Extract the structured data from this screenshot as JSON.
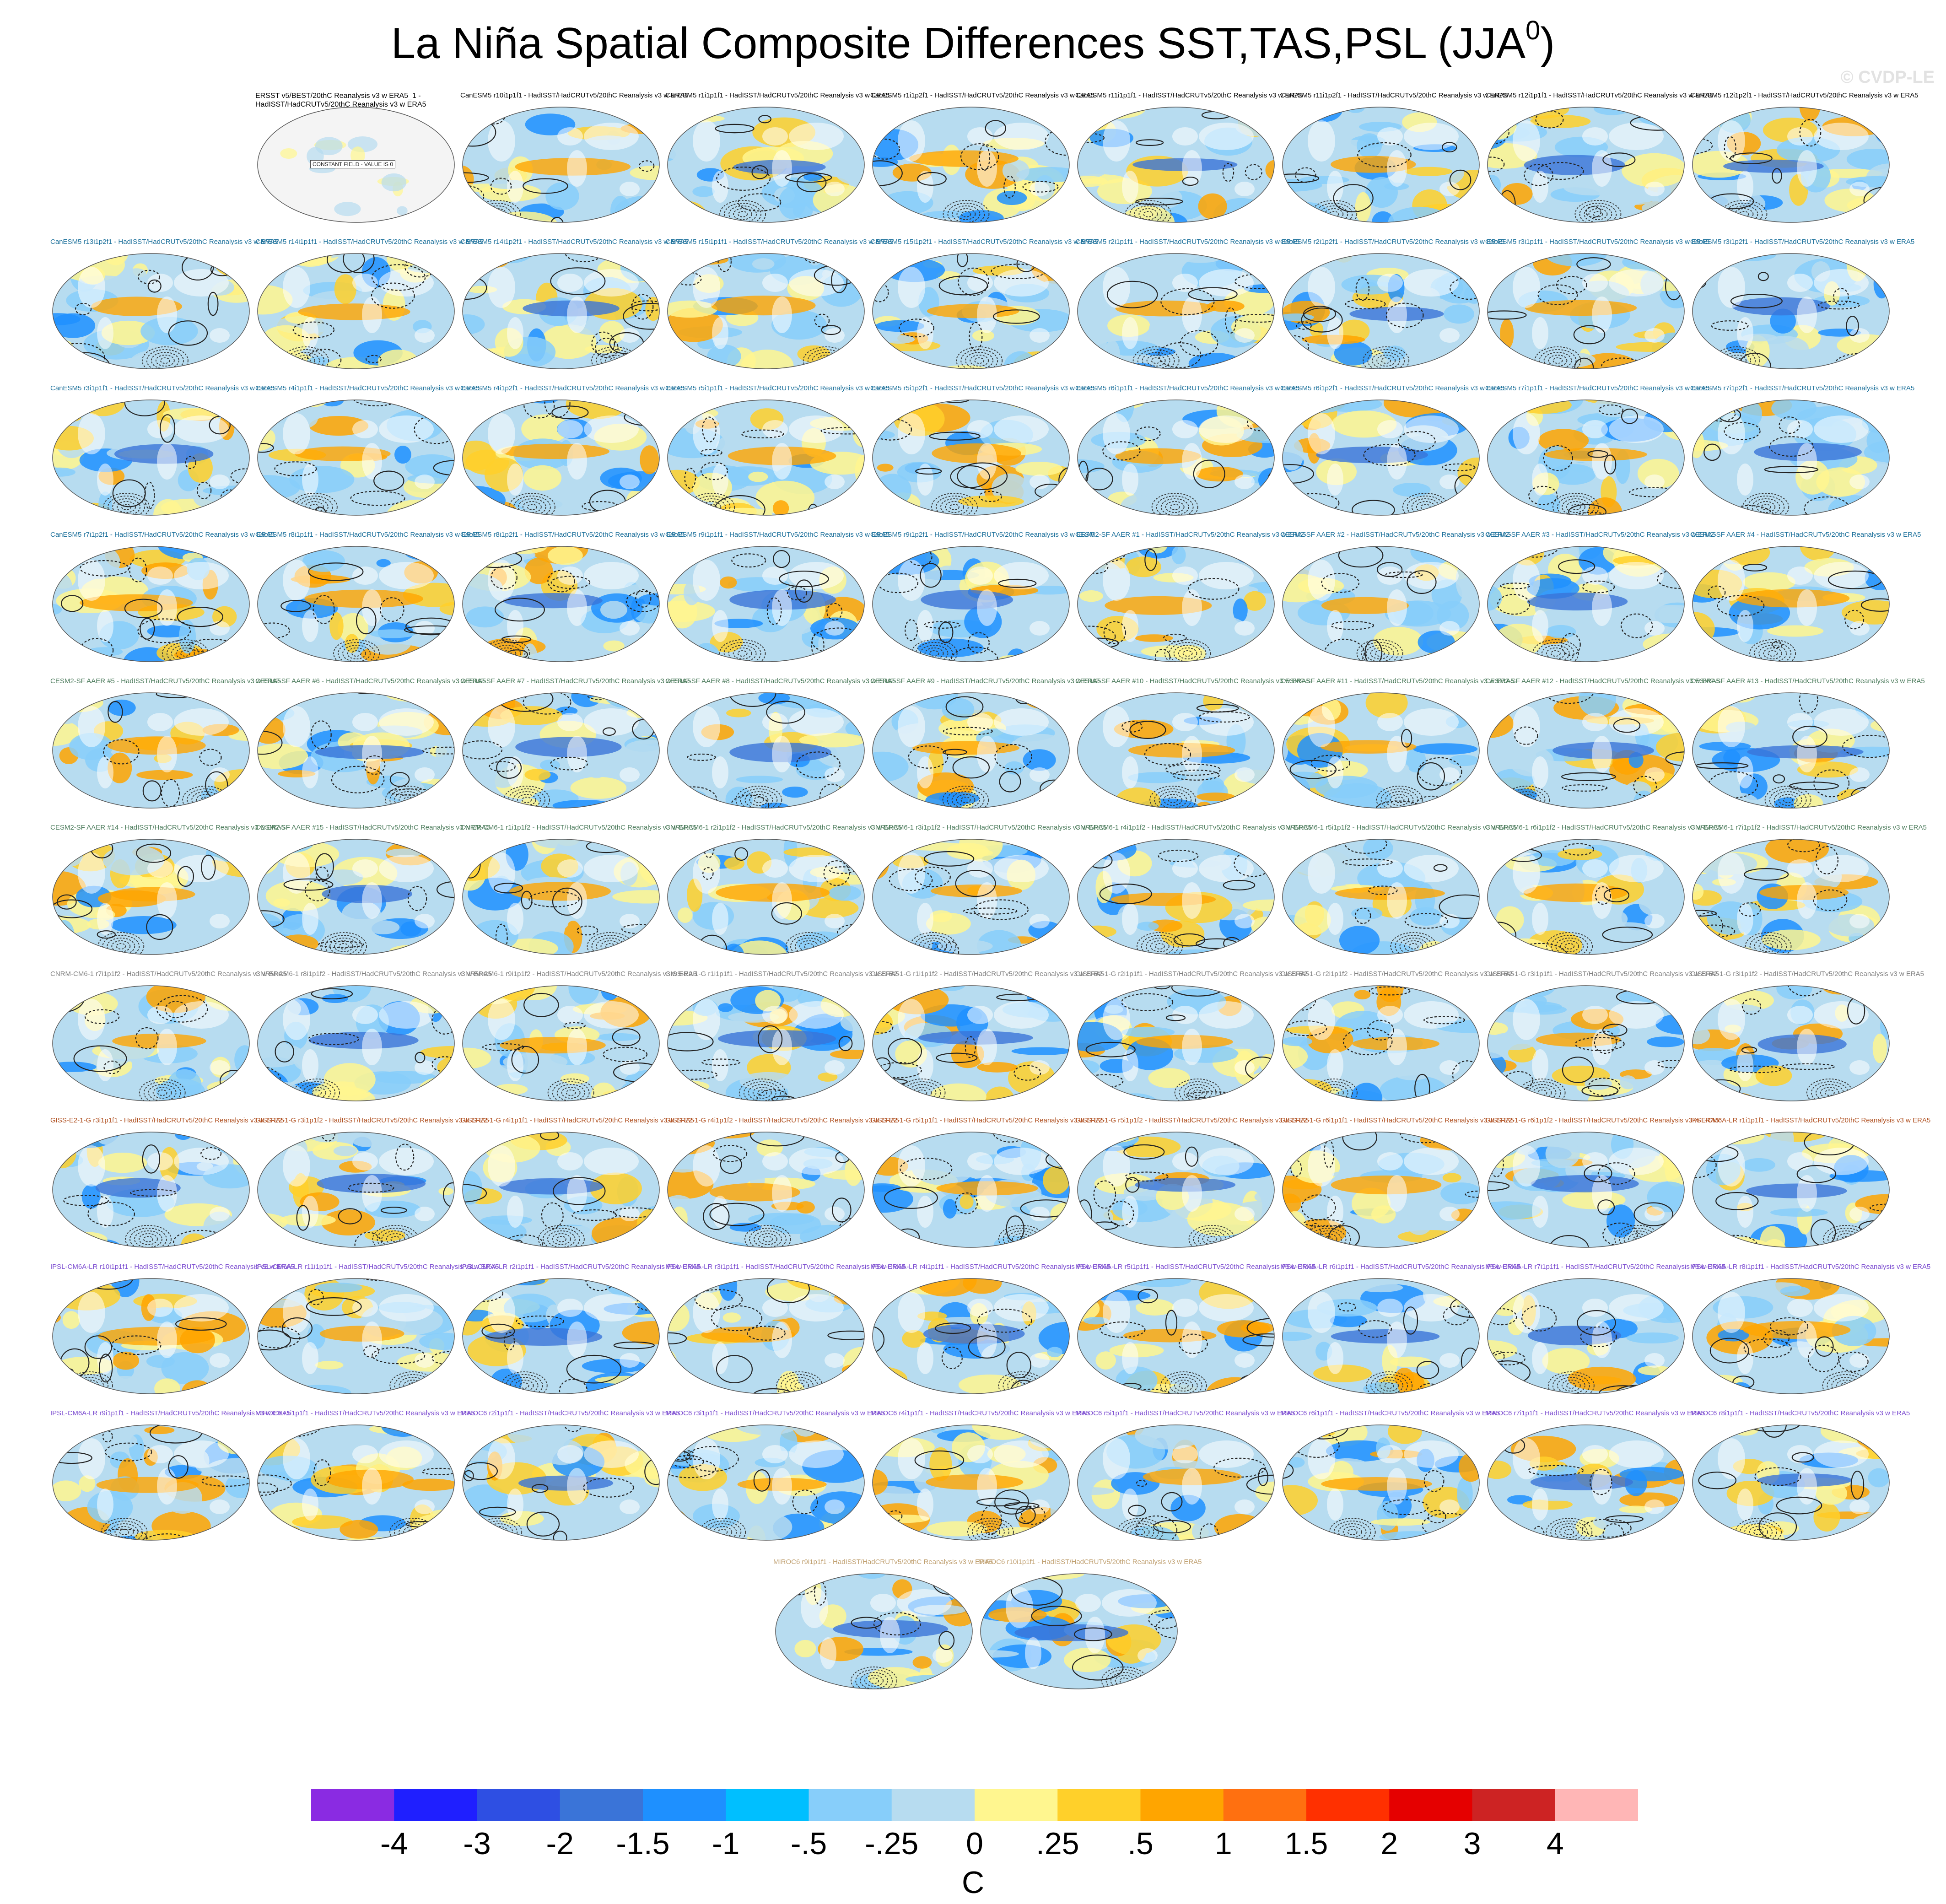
{
  "title": {
    "main": "La Niña Spatial Composite Differences SST,TAS,PSL (JJA",
    "superscript": "0",
    "close": ")"
  },
  "watermark": "© CVDP-LE",
  "units": "C",
  "colorbar": {
    "labels": [
      "-4",
      "-3",
      "-2",
      "-1.5",
      "-1",
      "-.5",
      "-.25",
      "0",
      ".25",
      ".5",
      "1",
      "1.5",
      "2",
      "3",
      "4"
    ],
    "colors": [
      "#8a2be2",
      "#1f1fff",
      "#2e4fe3",
      "#3a74d8",
      "#1e90ff",
      "#00bfff",
      "#87cefa",
      "#b7dcf0",
      "#fff68f",
      "#ffd02a",
      "#ffa500",
      "#ff7010",
      "#ff3000",
      "#e50000",
      "#cd2323",
      "#ffb6b6"
    ]
  },
  "rows": [
    {
      "color": "#000000",
      "labels": [
        "ERSST v5/BEST/20thC Reanalysis v3 w ERA5_1 - HadISST/HadCRUTv5/20thC Reanalysis v3 w ERA5",
        "CanESM5 r10i1p1f1 - HadISST/HadCRUTv5/20thC Reanalysis v3 w ERA5",
        "CanESM5 r1i1p1f1 - HadISST/HadCRUTv5/20thC Reanalysis v3 w ERA5",
        "CanESM5 r1i1p2f1 - HadISST/HadCRUTv5/20thC Reanalysis v3 w ERA5",
        "CanESM5 r11i1p1f1 - HadISST/HadCRUTv5/20thC Reanalysis v3 w ERA5",
        "CanESM5 r11i1p2f1 - HadISST/HadCRUTv5/20thC Reanalysis v3 w ERA5",
        "CanESM5 r12i1p1f1 - HadISST/HadCRUTv5/20thC Reanalysis v3 w ERA5",
        "CanESM5 r12i1p2f1 - HadISST/HadCRUTv5/20thC Reanalysis v3 w ERA5"
      ]
    },
    {
      "color": "#1a6f9a",
      "labels": [
        "CanESM5 r13i1p2f1 - HadISST/HadCRUTv5/20thC Reanalysis v3 w ERA5",
        "CanESM5 r14i1p1f1 - HadISST/HadCRUTv5/20thC Reanalysis v3 w ERA5",
        "CanESM5 r14i1p2f1 - HadISST/HadCRUTv5/20thC Reanalysis v3 w ERA5",
        "CanESM5 r15i1p1f1 - HadISST/HadCRUTv5/20thC Reanalysis v3 w ERA5",
        "CanESM5 r15i1p2f1 - HadISST/HadCRUTv5/20thC Reanalysis v3 w ERA5",
        "CanESM5 r2i1p1f1 - HadISST/HadCRUTv5/20thC Reanalysis v3 w ERA5",
        "CanESM5 r2i1p2f1 - HadISST/HadCRUTv5/20thC Reanalysis v3 w ERA5",
        "CanESM5 r3i1p1f1 - HadISST/HadCRUTv5/20thC Reanalysis v3 w ERA5",
        "CanESM5 r3i1p2f1 - HadISST/HadCRUTv5/20thC Reanalysis v3 w ERA5"
      ]
    },
    {
      "color": "#1a6f9a",
      "labels": [
        "CanESM5 r3i1p1f1 - HadISST/HadCRUTv5/20thC Reanalysis v3 w ERA5",
        "CanESM5 r4i1p1f1 - HadISST/HadCRUTv5/20thC Reanalysis v3 w ERA5",
        "CanESM5 r4i1p2f1 - HadISST/HadCRUTv5/20thC Reanalysis v3 w ERA5",
        "CanESM5 r5i1p1f1 - HadISST/HadCRUTv5/20thC Reanalysis v3 w ERA5",
        "CanESM5 r5i1p2f1 - HadISST/HadCRUTv5/20thC Reanalysis v3 w ERA5",
        "CanESM5 r6i1p1f1 - HadISST/HadCRUTv5/20thC Reanalysis v3 w ERA5",
        "CanESM5 r6i1p2f1 - HadISST/HadCRUTv5/20thC Reanalysis v3 w ERA5",
        "CanESM5 r7i1p1f1 - HadISST/HadCRUTv5/20thC Reanalysis v3 w ERA5",
        "CanESM5 r7i1p2f1 - HadISST/HadCRUTv5/20thC Reanalysis v3 w ERA5"
      ]
    },
    {
      "color": "#1a6f9a",
      "labels": [
        "CanESM5 r7i1p2f1 - HadISST/HadCRUTv5/20thC Reanalysis v3 w ERA5",
        "CanESM5 r8i1p1f1 - HadISST/HadCRUTv5/20thC Reanalysis v3 w ERA5",
        "CanESM5 r8i1p2f1 - HadISST/HadCRUTv5/20thC Reanalysis v3 w ERA5",
        "CanESM5 r9i1p1f1 - HadISST/HadCRUTv5/20thC Reanalysis v3 w ERA5",
        "CanESM5 r9i1p2f1 - HadISST/HadCRUTv5/20thC Reanalysis v3 w ERA5",
        "CESM2-SF AAER #1 - HadISST/HadCRUTv5/20thC Reanalysis v3 w ERA5",
        "CESM2-SF AAER #2 - HadISST/HadCRUTv5/20thC Reanalysis v3 w ERA5",
        "CESM2-SF AAER #3 - HadISST/HadCRUTv5/20thC Reanalysis v3 w ERA5",
        "CESM2-SF AAER #4 - HadISST/HadCRUTv5/20thC Reanalysis v3 w ERA5"
      ]
    },
    {
      "color": "#4a7a5a",
      "labels": [
        "CESM2-SF AAER #5 - HadISST/HadCRUTv5/20thC Reanalysis v3 w ERA5",
        "CESM2-SF AAER #6 - HadISST/HadCRUTv5/20thC Reanalysis v3 w ERA5",
        "CESM2-SF AAER #7 - HadISST/HadCRUTv5/20thC Reanalysis v3 w ERA5",
        "CESM2-SF AAER #8 - HadISST/HadCRUTv5/20thC Reanalysis v3 w ERA5",
        "CESM2-SF AAER #9 - HadISST/HadCRUTv5/20thC Reanalysis v3 w ERA5",
        "CESM2-SF AAER #10 - HadISST/HadCRUTv5/20thC Reanalysis v3 w ERA5",
        "CESM2-SF AAER #11 - HadISST/HadCRUTv5/20thC Reanalysis v3 w ERA5",
        "CESM2-SF AAER #12 - HadISST/HadCRUTv5/20thC Reanalysis v3 w ERA5",
        "CESM2-SF AAER #13 - HadISST/HadCRUTv5/20thC Reanalysis v3 w ERA5"
      ]
    },
    {
      "color": "#4a7a5a",
      "labels": [
        "CESM2-SF AAER #14 - HadISST/HadCRUTv5/20thC Reanalysis v3 w ERA5",
        "CESM2-SF AAER #15 - HadISST/HadCRUTv5/20thC Reanalysis v3 w ERA5",
        "CNRM-CM6-1 r1i1p1f2 - HadISST/HadCRUTv5/20thC Reanalysis v3 w ERA5",
        "CNRM-CM6-1 r2i1p1f2 - HadISST/HadCRUTv5/20thC Reanalysis v3 w ERA5",
        "CNRM-CM6-1 r3i1p1f2 - HadISST/HadCRUTv5/20thC Reanalysis v3 w ERA5",
        "CNRM-CM6-1 r4i1p1f2 - HadISST/HadCRUTv5/20thC Reanalysis v3 w ERA5",
        "CNRM-CM6-1 r5i1p1f2 - HadISST/HadCRUTv5/20thC Reanalysis v3 w ERA5",
        "CNRM-CM6-1 r6i1p1f2 - HadISST/HadCRUTv5/20thC Reanalysis v3 w ERA5",
        "CNRM-CM6-1 r7i1p1f2 - HadISST/HadCRUTv5/20thC Reanalysis v3 w ERA5"
      ]
    },
    {
      "color": "#808080",
      "labels": [
        "CNRM-CM6-1 r7i1p1f2 - HadISST/HadCRUTv5/20thC Reanalysis v3 w ERA5",
        "CNRM-CM6-1 r8i1p1f2 - HadISST/HadCRUTv5/20thC Reanalysis v3 w ERA5",
        "CNRM-CM6-1 r9i1p1f2 - HadISST/HadCRUTv5/20thC Reanalysis v3 w ERA5",
        "GISS-E2-1-G r1i1p1f1 - HadISST/HadCRUTv5/20thC Reanalysis v3 w ERA5",
        "GISS-E2-1-G r1i1p1f2 - HadISST/HadCRUTv5/20thC Reanalysis v3 w ERA5",
        "GISS-E2-1-G r2i1p1f1 - HadISST/HadCRUTv5/20thC Reanalysis v3 w ERA5",
        "GISS-E2-1-G r2i1p1f2 - HadISST/HadCRUTv5/20thC Reanalysis v3 w ERA5",
        "GISS-E2-1-G r3i1p1f1 - HadISST/HadCRUTv5/20thC Reanalysis v3 w ERA5",
        "GISS-E2-1-G r3i1p1f2 - HadISST/HadCRUTv5/20thC Reanalysis v3 w ERA5"
      ]
    },
    {
      "color": "#b05020",
      "labels": [
        "GISS-E2-1-G r3i1p1f1 - HadISST/HadCRUTv5/20thC Reanalysis v3 w ERA5",
        "GISS-E2-1-G r3i1p1f2 - HadISST/HadCRUTv5/20thC Reanalysis v3 w ERA5",
        "GISS-E2-1-G r4i1p1f1 - HadISST/HadCRUTv5/20thC Reanalysis v3 w ERA5",
        "GISS-E2-1-G r4i1p1f2 - HadISST/HadCRUTv5/20thC Reanalysis v3 w ERA5",
        "GISS-E2-1-G r5i1p1f1 - HadISST/HadCRUTv5/20thC Reanalysis v3 w ERA5",
        "GISS-E2-1-G r5i1p1f2 - HadISST/HadCRUTv5/20thC Reanalysis v3 w ERA5",
        "GISS-E2-1-G r6i1p1f1 - HadISST/HadCRUTv5/20thC Reanalysis v3 w ERA5",
        "GISS-E2-1-G r6i1p1f2 - HadISST/HadCRUTv5/20thC Reanalysis v3 w ERA5",
        "IPSL-CM6A-LR r1i1p1f1 - HadISST/HadCRUTv5/20thC Reanalysis v3 w ERA5"
      ]
    },
    {
      "color": "#7a4ad0",
      "labels": [
        "IPSL-CM6A-LR r10i1p1f1 - HadISST/HadCRUTv5/20thC Reanalysis v3 w ERA5",
        "IPSL-CM6A-LR r11i1p1f1 - HadISST/HadCRUTv5/20thC Reanalysis v3 w ERA5",
        "IPSL-CM6A-LR r2i1p1f1 - HadISST/HadCRUTv5/20thC Reanalysis v3 w ERA5",
        "IPSL-CM6A-LR r3i1p1f1 - HadISST/HadCRUTv5/20thC Reanalysis v3 w ERA5",
        "IPSL-CM6A-LR r4i1p1f1 - HadISST/HadCRUTv5/20thC Reanalysis v3 w ERA5",
        "IPSL-CM6A-LR r5i1p1f1 - HadISST/HadCRUTv5/20thC Reanalysis v3 w ERA5",
        "IPSL-CM6A-LR r6i1p1f1 - HadISST/HadCRUTv5/20thC Reanalysis v3 w ERA5",
        "IPSL-CM6A-LR r7i1p1f1 - HadISST/HadCRUTv5/20thC Reanalysis v3 w ERA5",
        "IPSL-CM6A-LR r8i1p1f1 - HadISST/HadCRUTv5/20thC Reanalysis v3 w ERA5"
      ]
    },
    {
      "color": "#7a4ad0",
      "labels": [
        "IPSL-CM6A-LR r9i1p1f1 - HadISST/HadCRUTv5/20thC Reanalysis v3 w ERA5",
        "MIROC6 r1i1p1f1 - HadISST/HadCRUTv5/20thC Reanalysis v3 w ERA5",
        "MIROC6 r2i1p1f1 - HadISST/HadCRUTv5/20thC Reanalysis v3 w ERA5",
        "MIROC6 r3i1p1f1 - HadISST/HadCRUTv5/20thC Reanalysis v3 w ERA5",
        "MIROC6 r4i1p1f1 - HadISST/HadCRUTv5/20thC Reanalysis v3 w ERA5",
        "MIROC6 r5i1p1f1 - HadISST/HadCRUTv5/20thC Reanalysis v3 w ERA5",
        "MIROC6 r6i1p1f1 - HadISST/HadCRUTv5/20thC Reanalysis v3 w ERA5",
        "MIROC6 r7i1p1f1 - HadISST/HadCRUTv5/20thC Reanalysis v3 w ERA5",
        "MIROC6 r8i1p1f1 - HadISST/HadCRUTv5/20thC Reanalysis v3 w ERA5"
      ]
    },
    {
      "color": "#c0a070",
      "labels": [
        "MIROC6 r9i1p1f1 - HadISST/HadCRUTv5/20thC Reanalysis v3 w ERA5",
        "MIROC6 r10i1p1f1 - HadISST/HadCRUTv5/20thC Reanalysis v3 w ERA5"
      ]
    }
  ],
  "constant_field_note": "CONSTANT FIELD - VALUE IS 0"
}
